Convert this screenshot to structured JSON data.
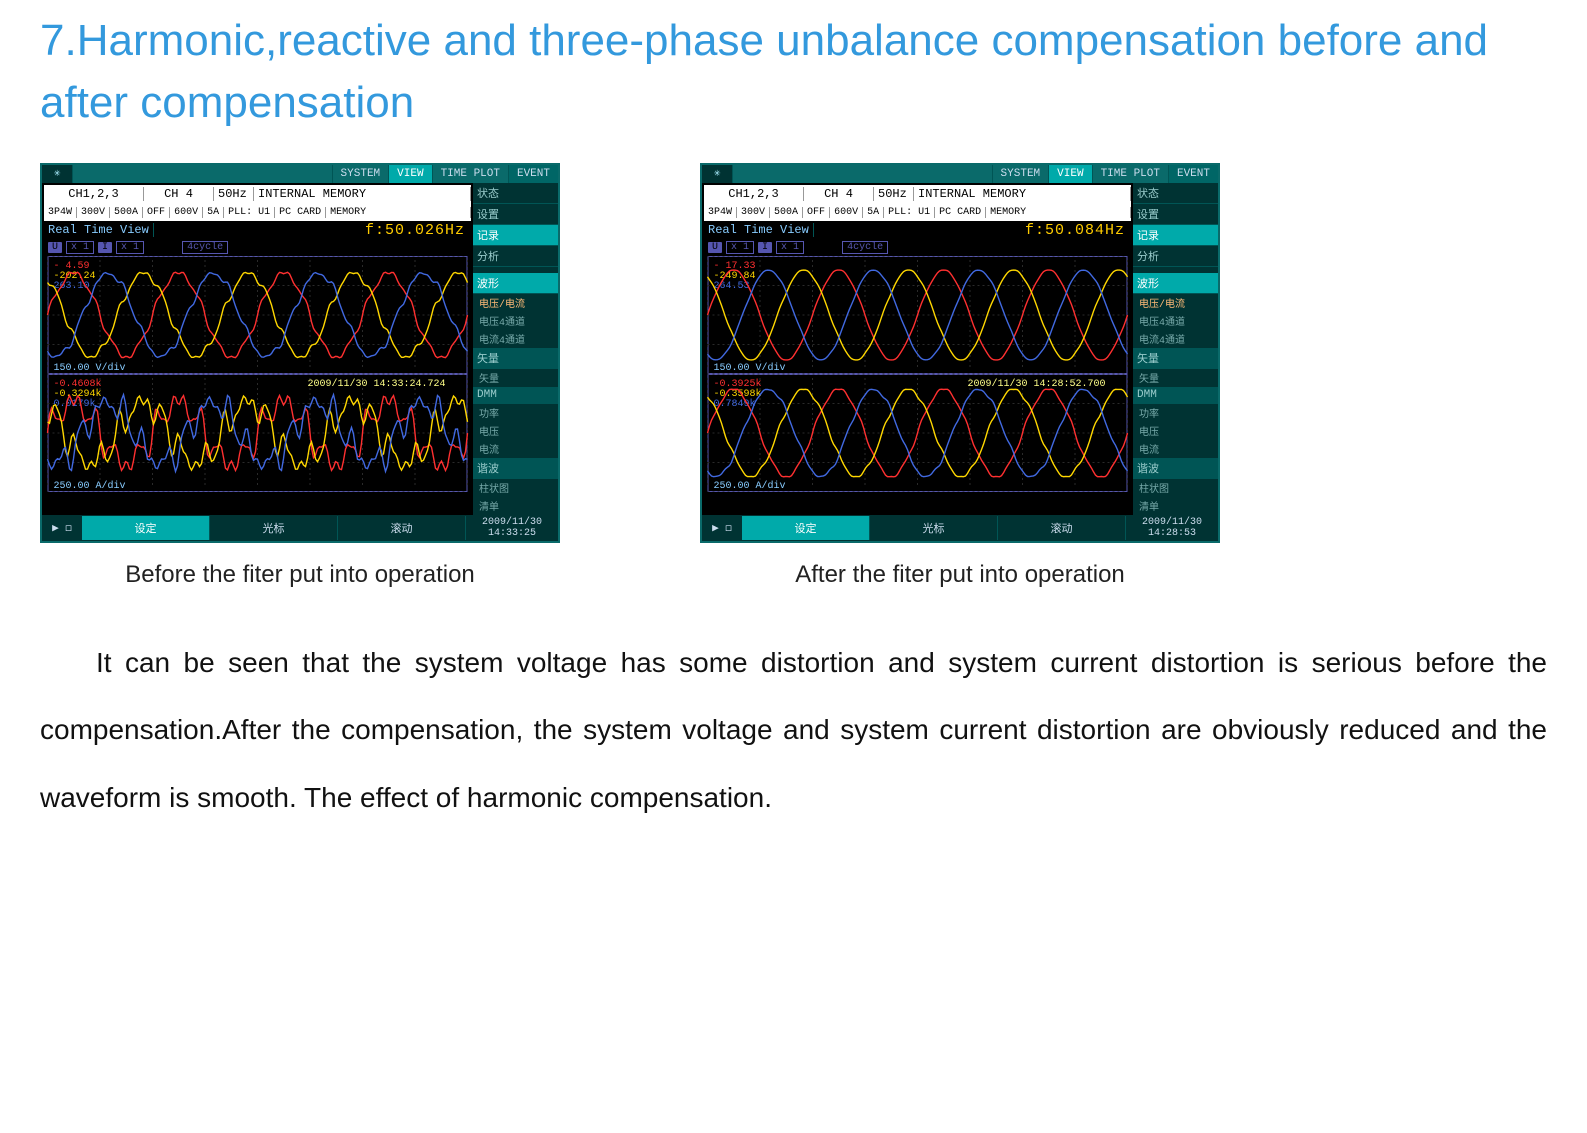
{
  "title": "7.Harmonic,reactive and three-phase unbalance compensation before and after compensation",
  "body_paragraph": "It can be seen that the system voltage has some distortion and system current distortion is serious before the compensation.After the compensation, the system voltage and system current distortion are obviously reduced and the waveform is smooth. The effect of harmonic compensation.",
  "scope_common": {
    "topbar": {
      "system": "SYSTEM",
      "view": "VIEW",
      "timeplot": "TIME PLOT",
      "event": "EVENT"
    },
    "ch_header": {
      "ch123": "CH1,2,3",
      "ch4": "CH 4",
      "fiftyhz": "50Hz",
      "mem1": "INTERNAL MEMORY",
      "row2a": "3P4W",
      "row2b": "300V",
      "row2c": "500A",
      "row2d": "OFF",
      "row2e": "600V",
      "row2f": "5A",
      "row2g": "PLL: U1",
      "row2h": "PC CARD",
      "row2i": "MEMORY",
      "realtime": "Real Time View"
    },
    "subhead": {
      "u": "U",
      "i": "I",
      "x1": "x 1",
      "cycle": "4cycle"
    },
    "voltage_scale": "150.00 V/div",
    "current_scale": "250.00 A/div",
    "sidebar": {
      "status": "状态",
      "settings": "设置",
      "record": "记录",
      "analyze": "分析",
      "waveform": "波形",
      "vu_label": "电压/电流",
      "v4": "电压4通道",
      "i4": "电流4通道",
      "vector": "矢量",
      "vector_sub": "矢量",
      "dmm": "DMM",
      "dmm_sub1": "功率",
      "dmm_sub2": "电压",
      "dmm_sub3": "电流",
      "harmonic": "谐波",
      "harm_sub1": "柱状图",
      "harm_sub2": "清单"
    },
    "footer": {
      "settei": "设定",
      "cursor": "光标",
      "scroll": "滚动"
    },
    "colors": {
      "phase_r": "#ff3030",
      "phase_y": "#ffd700",
      "phase_b": "#4169e1",
      "phase_r2": "#ff5a5a",
      "phase_y2": "#ffe040",
      "phase_b2": "#5a8aff",
      "grid": "#2a2a2a",
      "bg": "#000000",
      "teal": "#0a9a9a",
      "teal_dark": "#045050",
      "freq": "#ffcc00"
    }
  },
  "scope_before": {
    "caption": "Before the fiter put into operation",
    "frequency": "f:50.026Hz",
    "voltage_readings": {
      "r": "- 4.59",
      "y": "-202.24",
      "b": "263.10"
    },
    "current_readings": {
      "r": "-0.4608k",
      "y": "-0.3294k",
      "b": "0.0179k"
    },
    "current_timestamp": "2009/11/30 14:33:24.724",
    "footer_date": "2009/11/30",
    "footer_time": "14:33:25",
    "voltage_wave": {
      "amplitude_pct": 0.9,
      "cycles": 4,
      "distortion": 0.1
    },
    "current_wave": {
      "amplitude_pct": 0.9,
      "cycles": 4,
      "distortion": 0.55
    }
  },
  "scope_after": {
    "caption": "After the fiter put into operation",
    "frequency": "f:50.084Hz",
    "voltage_readings": {
      "r": "- 17.33",
      "y": "-249.84",
      "b": "264.53"
    },
    "current_readings": {
      "r": "-0.3925k",
      "y": "-0.3598k",
      "b": "0.7849k"
    },
    "current_timestamp": "2009/11/30 14:28:52.700",
    "footer_date": "2009/11/30",
    "footer_time": "14:28:53",
    "voltage_wave": {
      "amplitude_pct": 0.9,
      "cycles": 4,
      "distortion": 0.02
    },
    "current_wave": {
      "amplitude_pct": 0.9,
      "cycles": 4,
      "distortion": 0.05
    }
  }
}
